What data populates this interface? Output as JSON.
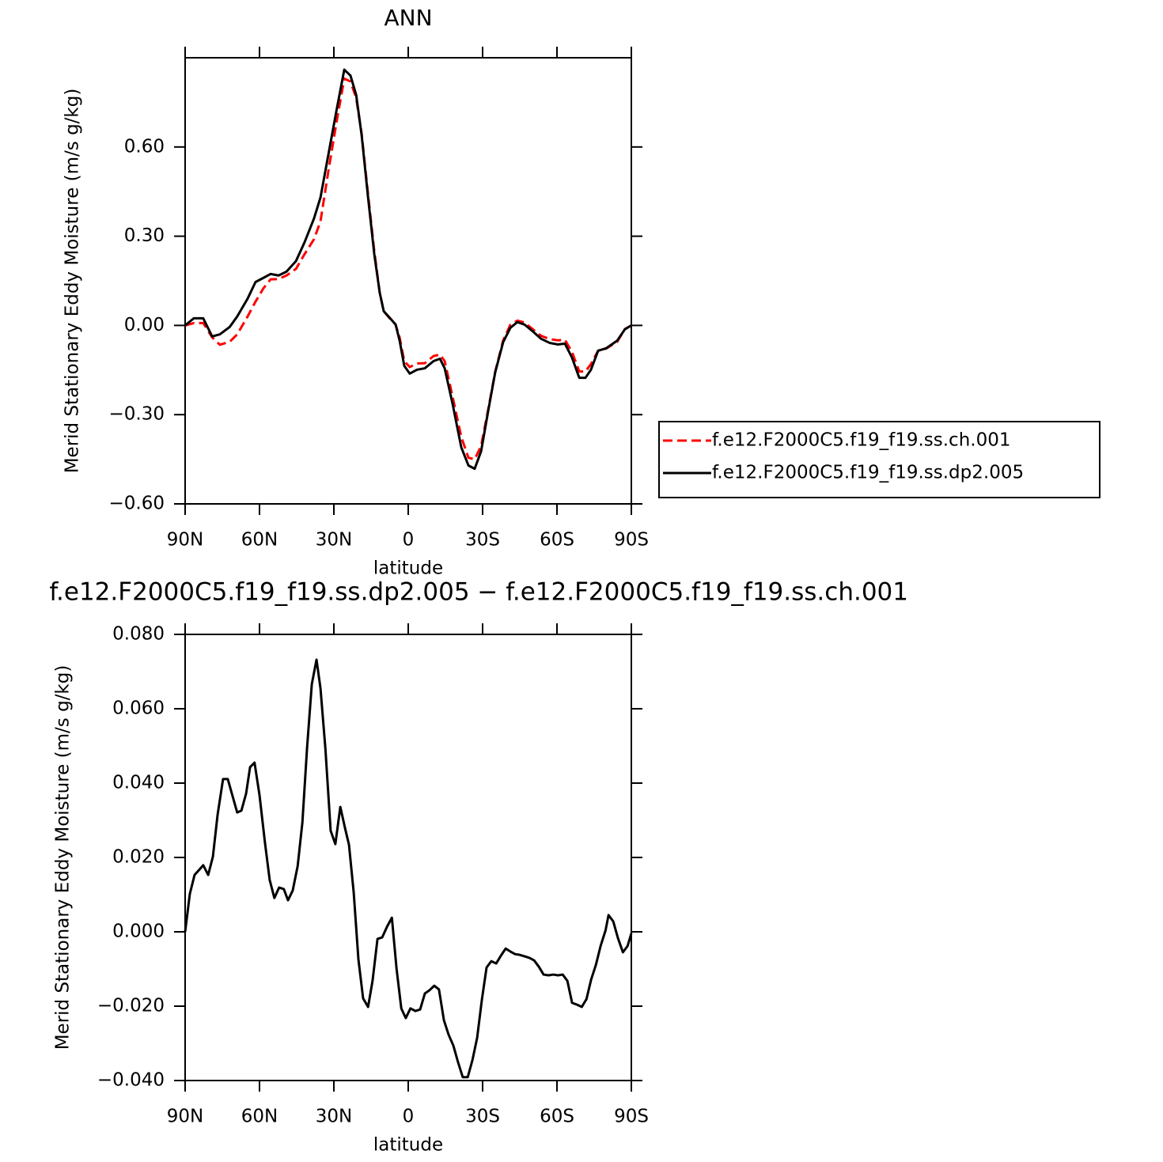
{
  "chart_data": [
    {
      "type": "line",
      "title": "ANN",
      "xlabel": "latitude",
      "ylabel": "Merid Stationary Eddy Moisture (m/s g/kg)",
      "xlim": [
        90,
        -90
      ],
      "xticks": [
        {
          "value": 90,
          "label": "90N"
        },
        {
          "value": 60,
          "label": "60N"
        },
        {
          "value": 30,
          "label": "30N"
        },
        0,
        {
          "value": -30,
          "label": "30S"
        },
        {
          "value": -60,
          "label": "60S"
        },
        {
          "value": -90,
          "label": "90S"
        }
      ],
      "ylim": [
        -0.6,
        0.9
      ],
      "yticks": [
        {
          "value": -0.6,
          "label": "−0.60"
        },
        {
          "value": -0.3,
          "label": "−0.30"
        },
        {
          "value": 0,
          "label": "0.00"
        },
        {
          "value": 0.3,
          "label": "0.30"
        },
        {
          "value": 0.6,
          "label": "0.60"
        }
      ],
      "legend": true,
      "x": [
        90,
        86.5,
        82.7,
        79.1,
        76,
        72,
        69,
        64.8,
        61.6,
        58.4,
        55.5,
        52.3,
        49.1,
        45.3,
        41.8,
        38,
        35.4,
        32.2,
        29,
        25.8,
        23.3,
        21,
        18.8,
        16.2,
        13.7,
        11.5,
        9.9,
        7.3,
        5.1,
        3.5,
        1.6,
        -0.6,
        -3.5,
        -6.7,
        -10.2,
        -12.8,
        -14.7,
        -17.9,
        -21.4,
        -24.3,
        -26.8,
        -29.4,
        -32.2,
        -35.1,
        -38.3,
        -41.2,
        -44,
        -46.9,
        -50.1,
        -53.6,
        -57.1,
        -60.3,
        -63.2,
        -66.1,
        -69,
        -71.5,
        -73.7,
        -76.6,
        -79.8,
        -84.3,
        -87.4,
        -90
      ],
      "series": [
        {
          "name": "f.e12.F2000C5.f19_f19.ss.ch.001",
          "color": "#ff0000",
          "dashed": true,
          "values": [
            0,
            0.008,
            0.008,
            -0.04,
            -0.065,
            -0.055,
            -0.03,
            0.03,
            0.08,
            0.125,
            0.155,
            0.156,
            0.168,
            0.19,
            0.24,
            0.29,
            0.35,
            0.52,
            0.68,
            0.83,
            0.82,
            0.765,
            0.645,
            0.44,
            0.25,
            0.11,
            0.048,
            0.022,
            0.003,
            -0.04,
            -0.12,
            -0.14,
            -0.128,
            -0.127,
            -0.103,
            -0.098,
            -0.12,
            -0.24,
            -0.375,
            -0.445,
            -0.45,
            -0.405,
            -0.285,
            -0.155,
            -0.05,
            0.002,
            0.016,
            0.01,
            -0.012,
            -0.035,
            -0.046,
            -0.05,
            -0.048,
            -0.09,
            -0.155,
            -0.155,
            -0.13,
            -0.085,
            -0.078,
            -0.055,
            -0.012,
            0
          ]
        },
        {
          "name": "f.e12.F2000C5.f19_f19.ss.dp2.005",
          "color": "#000000",
          "dashed": false,
          "values": [
            0,
            0.024,
            0.024,
            -0.037,
            -0.03,
            -0.005,
            0.03,
            0.09,
            0.146,
            0.16,
            0.173,
            0.168,
            0.181,
            0.216,
            0.28,
            0.36,
            0.43,
            0.575,
            0.72,
            0.86,
            0.84,
            0.775,
            0.64,
            0.43,
            0.24,
            0.11,
            0.048,
            0.024,
            0.003,
            -0.05,
            -0.136,
            -0.162,
            -0.149,
            -0.144,
            -0.12,
            -0.112,
            -0.144,
            -0.264,
            -0.41,
            -0.471,
            -0.482,
            -0.423,
            -0.29,
            -0.157,
            -0.056,
            -0.008,
            0.011,
            0.003,
            -0.019,
            -0.045,
            -0.059,
            -0.064,
            -0.061,
            -0.109,
            -0.176,
            -0.176,
            -0.149,
            -0.085,
            -0.077,
            -0.051,
            -0.013,
            0
          ]
        }
      ]
    },
    {
      "type": "line",
      "title": "f.e12.F2000C5.f19_f19.ss.dp2.005 − f.e12.F2000C5.f19_f19.ss.ch.001",
      "xlabel": "latitude",
      "ylabel": "Merid Stationary Eddy Moisture (m/s g/kg)",
      "xlim": [
        90,
        -90
      ],
      "xticks": [
        {
          "value": 90,
          "label": "90N"
        },
        {
          "value": 60,
          "label": "60N"
        },
        {
          "value": 30,
          "label": "30N"
        },
        0,
        {
          "value": -30,
          "label": "30S"
        },
        {
          "value": -60,
          "label": "60S"
        },
        {
          "value": -90,
          "label": "90S"
        }
      ],
      "ylim": [
        -0.04,
        0.08
      ],
      "yticks": [
        {
          "value": -0.04,
          "label": "−0.040"
        },
        {
          "value": -0.02,
          "label": "−0.020"
        },
        {
          "value": 0,
          "label": "0.000"
        },
        {
          "value": 0.02,
          "label": "0.020"
        },
        {
          "value": 0.04,
          "label": "0.040"
        },
        {
          "value": 0.06,
          "label": "0.060"
        },
        {
          "value": 0.08,
          "label": "0.080"
        }
      ],
      "color": "#000000",
      "x": [
        90,
        88.1,
        86.2,
        82.7,
        80.7,
        78.8,
        76.9,
        74.7,
        72.8,
        69,
        67.3,
        65.4,
        63.8,
        62,
        60,
        57.8,
        55.9,
        54,
        52.1,
        50.2,
        48.5,
        46.6,
        44.6,
        42.7,
        40.8,
        38.9,
        37,
        35.4,
        33.4,
        31.3,
        29.4,
        27.4,
        25.5,
        23.9,
        22,
        20.1,
        18.2,
        16.2,
        14.4,
        12.4,
        10.5,
        8.6,
        6.6,
        4.7,
        2.8,
        1,
        -0.9,
        -2.9,
        -4.8,
        -6.7,
        -8.6,
        -10.5,
        -12.4,
        -14.4,
        -16.3,
        -18.2,
        -20.1,
        -22,
        -24,
        -25.9,
        -27.8,
        -29.7,
        -31.6,
        -33.5,
        -35.5,
        -37.4,
        -39.3,
        -41.2,
        -43.1,
        -45,
        -47,
        -48.9,
        -50.8,
        -52.7,
        -54.6,
        -56.6,
        -58.5,
        -60.4,
        -62.3,
        -64.2,
        -66.1,
        -68.1,
        -70,
        -71.9,
        -73.8,
        -75.7,
        -77.6,
        -79.6,
        -80.8,
        -82.7,
        -84.6,
        -86.6,
        -88.5,
        -90
      ],
      "values": [
        0,
        0.0102,
        0.0153,
        0.0179,
        0.0153,
        0.0202,
        0.0315,
        0.0411,
        0.0411,
        0.0321,
        0.0326,
        0.0372,
        0.0443,
        0.0455,
        0.0368,
        0.024,
        0.014,
        0.0091,
        0.0119,
        0.0115,
        0.0085,
        0.0111,
        0.0177,
        0.0294,
        0.0496,
        0.0666,
        0.0732,
        0.0655,
        0.0491,
        0.0272,
        0.0236,
        0.0336,
        0.0279,
        0.0234,
        0.0106,
        -0.0074,
        -0.0179,
        -0.0202,
        -0.0132,
        -0.0019,
        -0.0015,
        0.0013,
        0.0038,
        -0.01,
        -0.0206,
        -0.0232,
        -0.0206,
        -0.0213,
        -0.0209,
        -0.0166,
        -0.0157,
        -0.0145,
        -0.0155,
        -0.0238,
        -0.0277,
        -0.0306,
        -0.0351,
        -0.0391,
        -0.0391,
        -0.0345,
        -0.0285,
        -0.0183,
        -0.0096,
        -0.0079,
        -0.0085,
        -0.0064,
        -0.0045,
        -0.0053,
        -0.006,
        -0.0062,
        -0.0066,
        -0.007,
        -0.0077,
        -0.0094,
        -0.0115,
        -0.0117,
        -0.0115,
        -0.0117,
        -0.0115,
        -0.0132,
        -0.0191,
        -0.0196,
        -0.0202,
        -0.0181,
        -0.0128,
        -0.0089,
        -0.0038,
        0.0004,
        0.0045,
        0.0028,
        -0.0017,
        -0.0055,
        -0.0038,
        -0.0004
      ]
    }
  ]
}
